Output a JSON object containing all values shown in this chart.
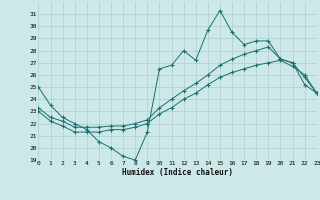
{
  "xlabel": "Humidex (Indice chaleur)",
  "background_color": "#cce8e8",
  "grid_color": "#b0cccc",
  "line_color": "#1a7070",
  "xlim": [
    0,
    23
  ],
  "ylim": [
    19,
    32
  ],
  "xticks": [
    0,
    1,
    2,
    3,
    4,
    5,
    6,
    7,
    8,
    9,
    10,
    11,
    12,
    13,
    14,
    15,
    16,
    17,
    18,
    19,
    20,
    21,
    22,
    23
  ],
  "yticks": [
    19,
    20,
    21,
    22,
    23,
    24,
    25,
    26,
    27,
    28,
    29,
    30,
    31
  ],
  "series1_x": [
    0,
    1,
    2,
    3,
    4,
    5,
    6,
    7,
    8,
    9,
    10,
    11,
    12,
    13,
    14,
    15,
    16,
    17,
    18,
    19,
    20,
    21,
    22,
    23
  ],
  "series1_y": [
    25.0,
    23.5,
    22.5,
    22.0,
    21.5,
    20.5,
    20.0,
    19.3,
    19.0,
    21.3,
    26.5,
    26.8,
    28.0,
    27.2,
    29.7,
    31.3,
    29.5,
    28.5,
    28.8,
    28.8,
    27.3,
    27.0,
    25.8,
    24.5
  ],
  "series2_x": [
    0,
    1,
    2,
    3,
    4,
    5,
    6,
    7,
    8,
    9,
    10,
    11,
    12,
    13,
    14,
    15,
    16,
    17,
    18,
    19,
    20,
    21,
    22,
    23
  ],
  "series2_y": [
    23.3,
    22.5,
    22.2,
    21.7,
    21.7,
    21.7,
    21.8,
    21.8,
    22.0,
    22.3,
    23.3,
    24.0,
    24.7,
    25.3,
    26.0,
    26.8,
    27.3,
    27.7,
    28.0,
    28.3,
    27.3,
    27.0,
    25.2,
    24.5
  ],
  "series3_x": [
    0,
    1,
    2,
    3,
    4,
    5,
    6,
    7,
    8,
    9,
    10,
    11,
    12,
    13,
    14,
    15,
    16,
    17,
    18,
    19,
    20,
    21,
    22,
    23
  ],
  "series3_y": [
    23.0,
    22.2,
    21.8,
    21.3,
    21.3,
    21.3,
    21.5,
    21.5,
    21.7,
    22.0,
    22.8,
    23.3,
    24.0,
    24.5,
    25.2,
    25.8,
    26.2,
    26.5,
    26.8,
    27.0,
    27.2,
    26.7,
    26.0,
    24.5
  ]
}
